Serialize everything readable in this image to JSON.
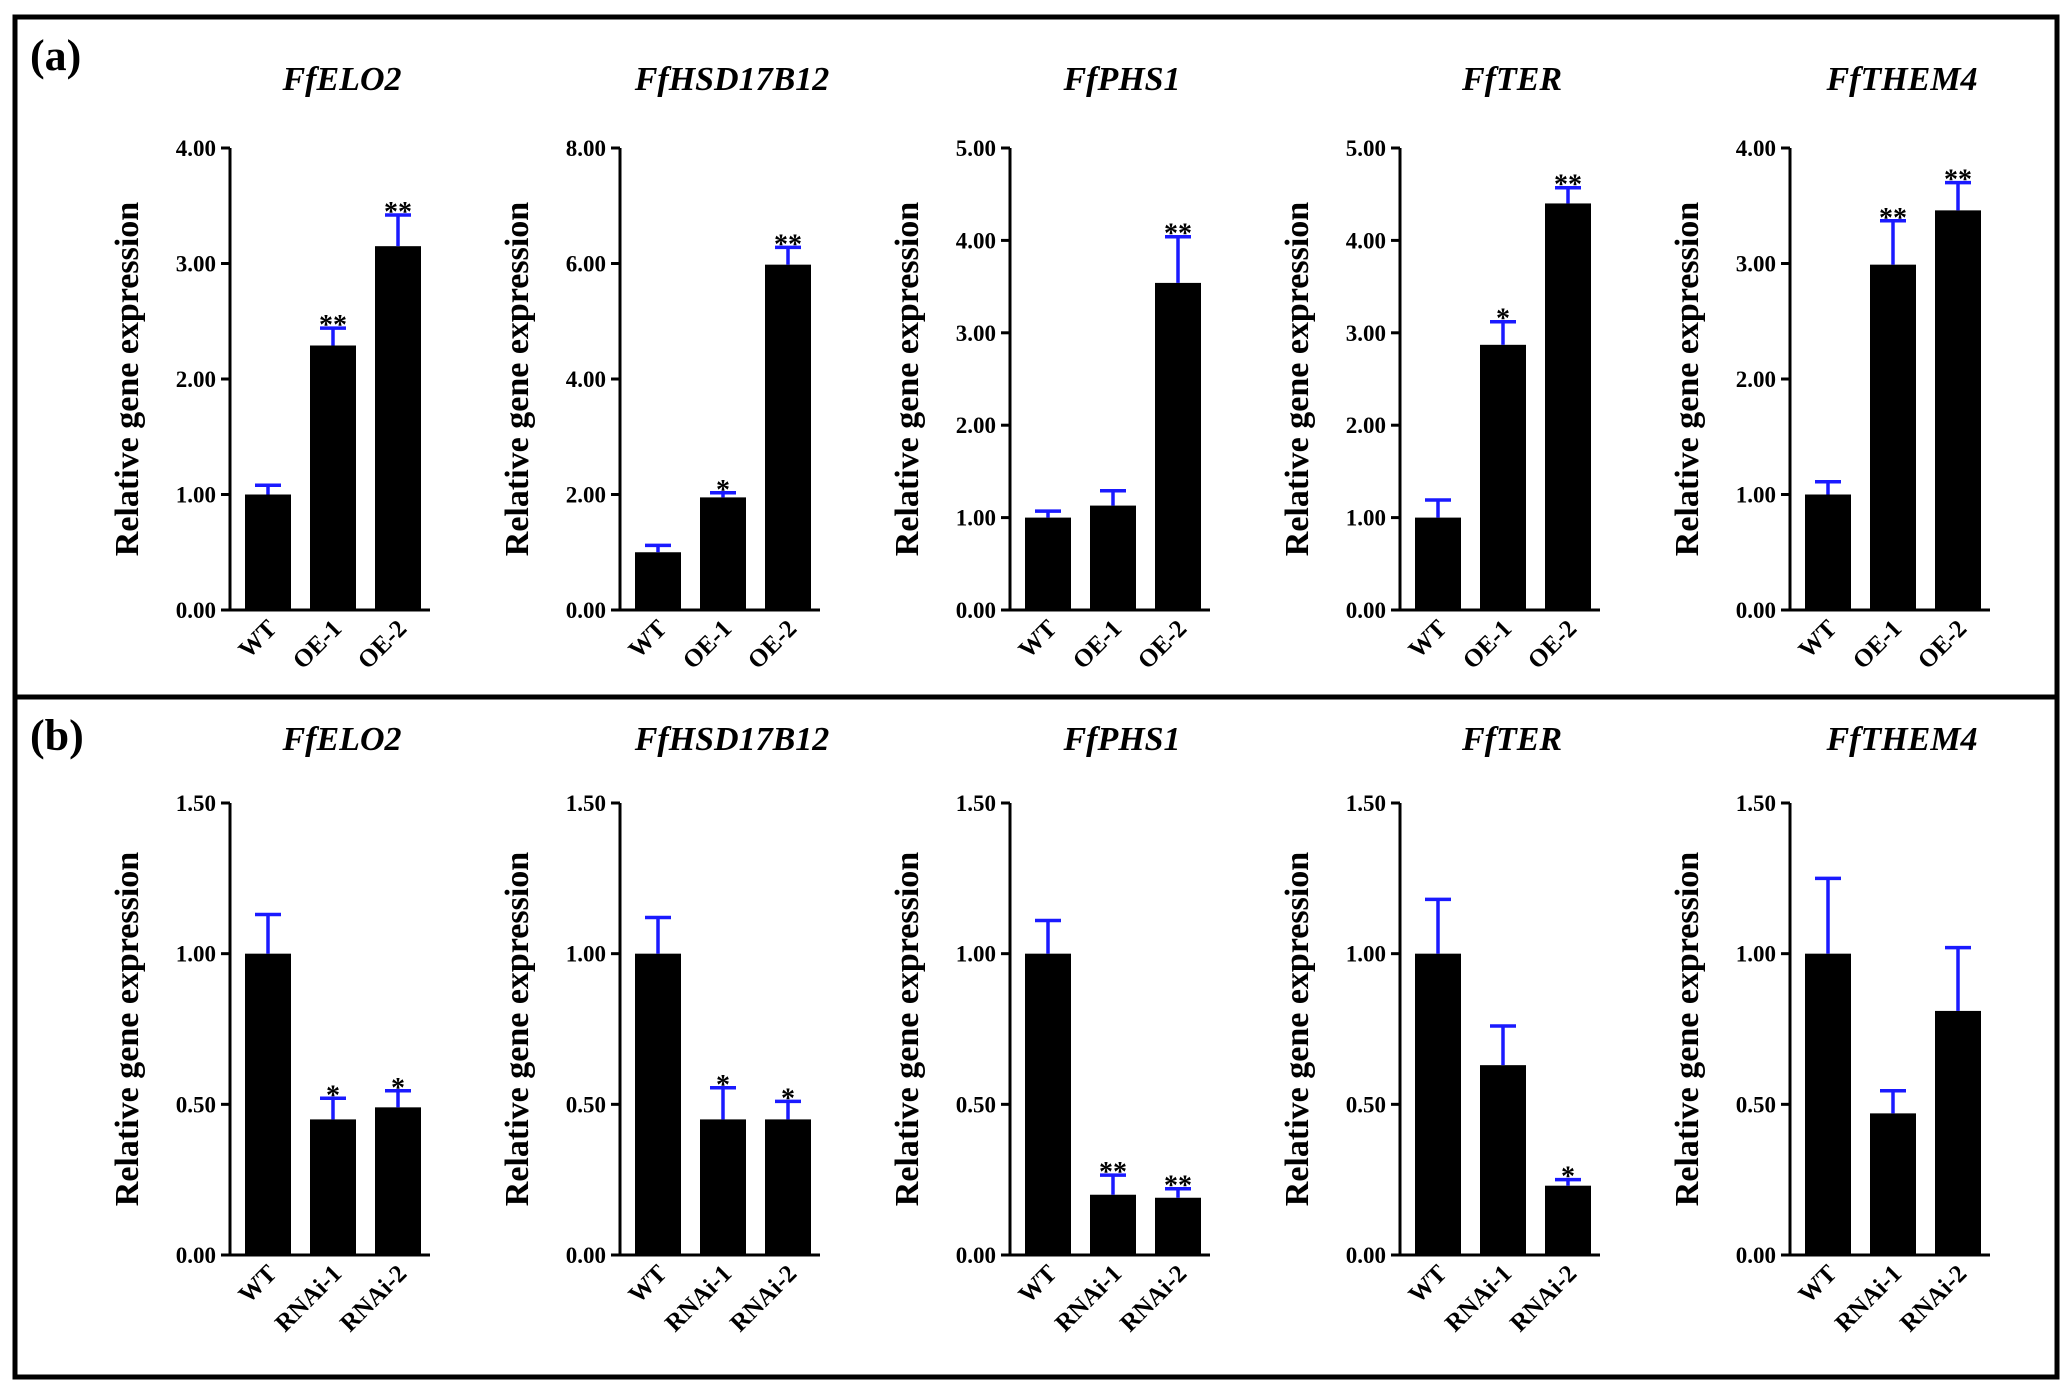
{
  "figure": {
    "colors": {
      "bar": "#000000",
      "error_bar": "#1a1aff",
      "border": "#000000"
    }
  },
  "panels": [
    {
      "label": "(a)"
    },
    {
      "label": "(b)"
    }
  ],
  "chart_data": [
    {
      "type": "bar",
      "panel": "(a)",
      "title": "FfELO2",
      "xlabel": "",
      "ylabel": "Relative gene expression",
      "categories": [
        "WT",
        "OE-1",
        "OE-2"
      ],
      "values": [
        1.0,
        2.29,
        3.15
      ],
      "errors": [
        0.08,
        0.15,
        0.27
      ],
      "significance": [
        "",
        "**",
        "**"
      ],
      "ylim": [
        0,
        4
      ],
      "ticks": [
        "0.00",
        "1.00",
        "2.00",
        "3.00",
        "4.00"
      ]
    },
    {
      "type": "bar",
      "panel": "(a)",
      "title": "FfHSD17B12",
      "xlabel": "",
      "ylabel": "Relative gene expression",
      "categories": [
        "WT",
        "OE-1",
        "OE-2"
      ],
      "values": [
        1.0,
        1.95,
        5.98
      ],
      "errors": [
        0.12,
        0.08,
        0.3
      ],
      "significance": [
        "",
        "*",
        "**"
      ],
      "ylim": [
        0,
        8
      ],
      "ticks": [
        "0.00",
        "2.00",
        "4.00",
        "6.00",
        "8.00"
      ]
    },
    {
      "type": "bar",
      "panel": "(a)",
      "title": "FfPHS1",
      "xlabel": "",
      "ylabel": "Relative gene expression",
      "categories": [
        "WT",
        "OE-1",
        "OE-2"
      ],
      "values": [
        1.0,
        1.13,
        3.54
      ],
      "errors": [
        0.07,
        0.16,
        0.5
      ],
      "significance": [
        "",
        "",
        "**"
      ],
      "ylim": [
        0,
        5
      ],
      "ticks": [
        "0.00",
        "1.00",
        "2.00",
        "3.00",
        "4.00",
        "5.00"
      ]
    },
    {
      "type": "bar",
      "panel": "(a)",
      "title": "FfTER",
      "xlabel": "",
      "ylabel": "Relative gene expression",
      "categories": [
        "WT",
        "OE-1",
        "OE-2"
      ],
      "values": [
        1.0,
        2.87,
        4.4
      ],
      "errors": [
        0.19,
        0.25,
        0.17
      ],
      "significance": [
        "",
        "*",
        "**"
      ],
      "ylim": [
        0,
        5
      ],
      "ticks": [
        "0.00",
        "1.00",
        "2.00",
        "3.00",
        "4.00",
        "5.00"
      ]
    },
    {
      "type": "bar",
      "panel": "(a)",
      "title": "FfTHEM4",
      "xlabel": "",
      "ylabel": "Relative gene expression",
      "categories": [
        "WT",
        "OE-1",
        "OE-2"
      ],
      "values": [
        1.0,
        2.99,
        3.46
      ],
      "errors": [
        0.11,
        0.38,
        0.24
      ],
      "significance": [
        "",
        "**",
        "**"
      ],
      "ylim": [
        0,
        4
      ],
      "ticks": [
        "0.00",
        "1.00",
        "2.00",
        "3.00",
        "4.00"
      ]
    },
    {
      "type": "bar",
      "panel": "(b)",
      "title": "FfELO2",
      "xlabel": "",
      "ylabel": "Relative gene expression",
      "categories": [
        "WT",
        "RNAi-1",
        "RNAi-2"
      ],
      "values": [
        1.0,
        0.45,
        0.49
      ],
      "errors": [
        0.13,
        0.07,
        0.055
      ],
      "significance": [
        "",
        "*",
        "*"
      ],
      "ylim": [
        0,
        1.5
      ],
      "ticks": [
        "0.00",
        "0.50",
        "1.00",
        "1.50"
      ]
    },
    {
      "type": "bar",
      "panel": "(b)",
      "title": "FfHSD17B12",
      "xlabel": "",
      "ylabel": "Relative gene expression",
      "categories": [
        "WT",
        "RNAi-1",
        "RNAi-2"
      ],
      "values": [
        1.0,
        0.45,
        0.45
      ],
      "errors": [
        0.12,
        0.105,
        0.06
      ],
      "significance": [
        "",
        "*",
        "*"
      ],
      "ylim": [
        0,
        1.5
      ],
      "ticks": [
        "0.00",
        "0.50",
        "1.00",
        "1.50"
      ]
    },
    {
      "type": "bar",
      "panel": "(b)",
      "title": "FfPHS1",
      "xlabel": "",
      "ylabel": "Relative gene expression",
      "categories": [
        "WT",
        "RNAi-1",
        "RNAi-2"
      ],
      "values": [
        1.0,
        0.2,
        0.19
      ],
      "errors": [
        0.11,
        0.065,
        0.03
      ],
      "significance": [
        "",
        "**",
        "**"
      ],
      "ylim": [
        0,
        1.5
      ],
      "ticks": [
        "0.00",
        "0.50",
        "1.00",
        "1.50"
      ]
    },
    {
      "type": "bar",
      "panel": "(b)",
      "title": "FfTER",
      "xlabel": "",
      "ylabel": "Relative gene expression",
      "categories": [
        "WT",
        "RNAi-1",
        "RNAi-2"
      ],
      "values": [
        1.0,
        0.63,
        0.23
      ],
      "errors": [
        0.18,
        0.13,
        0.02
      ],
      "significance": [
        "",
        "",
        "*"
      ],
      "ylim": [
        0,
        1.5
      ],
      "ticks": [
        "0.00",
        "0.50",
        "1.00",
        "1.50"
      ]
    },
    {
      "type": "bar",
      "panel": "(b)",
      "title": "FfTHEM4",
      "xlabel": "",
      "ylabel": "Relative gene expression",
      "categories": [
        "WT",
        "RNAi-1",
        "RNAi-2"
      ],
      "values": [
        1.0,
        0.47,
        0.81
      ],
      "errors": [
        0.25,
        0.075,
        0.21
      ],
      "significance": [
        "",
        "",
        ""
      ],
      "ylim": [
        0,
        1.5
      ],
      "ticks": [
        "0.00",
        "0.50",
        "1.00",
        "1.50"
      ]
    }
  ]
}
